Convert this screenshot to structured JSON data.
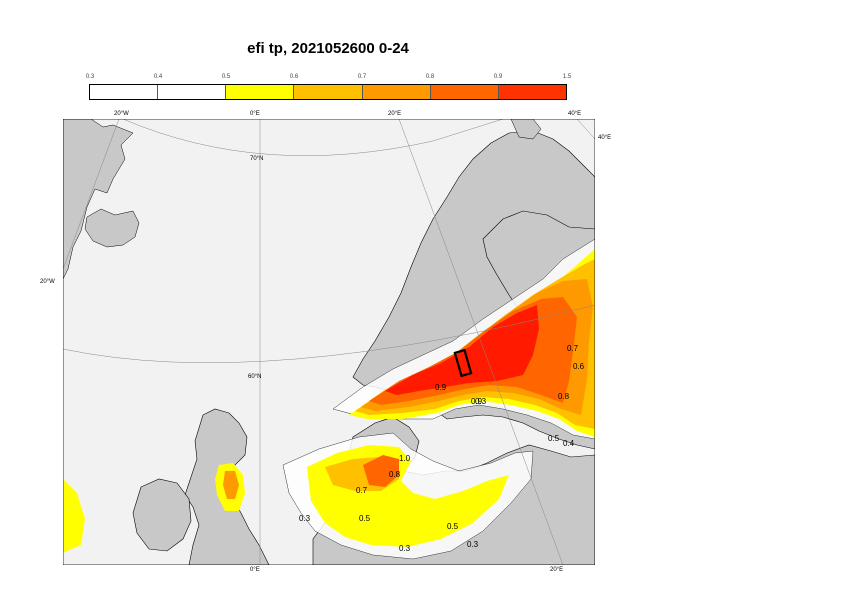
{
  "title": "efi tp, 2021052600 0-24",
  "colorbar": {
    "ticks": [
      "0.3",
      "0.4",
      "0.5",
      "0.6",
      "0.7",
      "0.8",
      "0.9",
      "1.5"
    ],
    "colors": [
      "#ffffff",
      "#ffffff",
      "#ffff00",
      "#ffc000",
      "#ff9900",
      "#ff6600",
      "#ff3300",
      "#ff0000"
    ]
  },
  "map_colors": {
    "sea": "#f2f2f2",
    "land": "#c8c8c8",
    "coast": "#000000",
    "graticule": "#888888",
    "lvl_03": "#ffffff",
    "lvl_05": "#ffff00",
    "lvl_06": "#ffc000",
    "lvl_07": "#ff9900",
    "lvl_08": "#ff6600",
    "lvl_09": "#ff1a00"
  },
  "graticule_labels": {
    "top_20w": "20°W",
    "top_0": "0°E",
    "top_20e": "20°E",
    "top_40e": "40°E",
    "right_40e": "40°E",
    "left_20w": "20°W",
    "lat_70n": "70°N",
    "lat_60n": "60°N",
    "bottom_0": "0°E",
    "bottom_20e": "20°E"
  },
  "contour_labels": {
    "c09a": "0.9",
    "c09b": "0.9",
    "c08a": "0.8",
    "c08b": "0.8",
    "c07a": "0.7",
    "c07b": "0.7",
    "c06a": "0.6",
    "c05a": "0.5",
    "c05b": "0.5",
    "c05c": "0.5",
    "c04a": "0.4",
    "c03a": "0.3",
    "c03b": "0.3",
    "c03c": "0.3",
    "c03d": "0.3",
    "c10a": "1.0"
  }
}
